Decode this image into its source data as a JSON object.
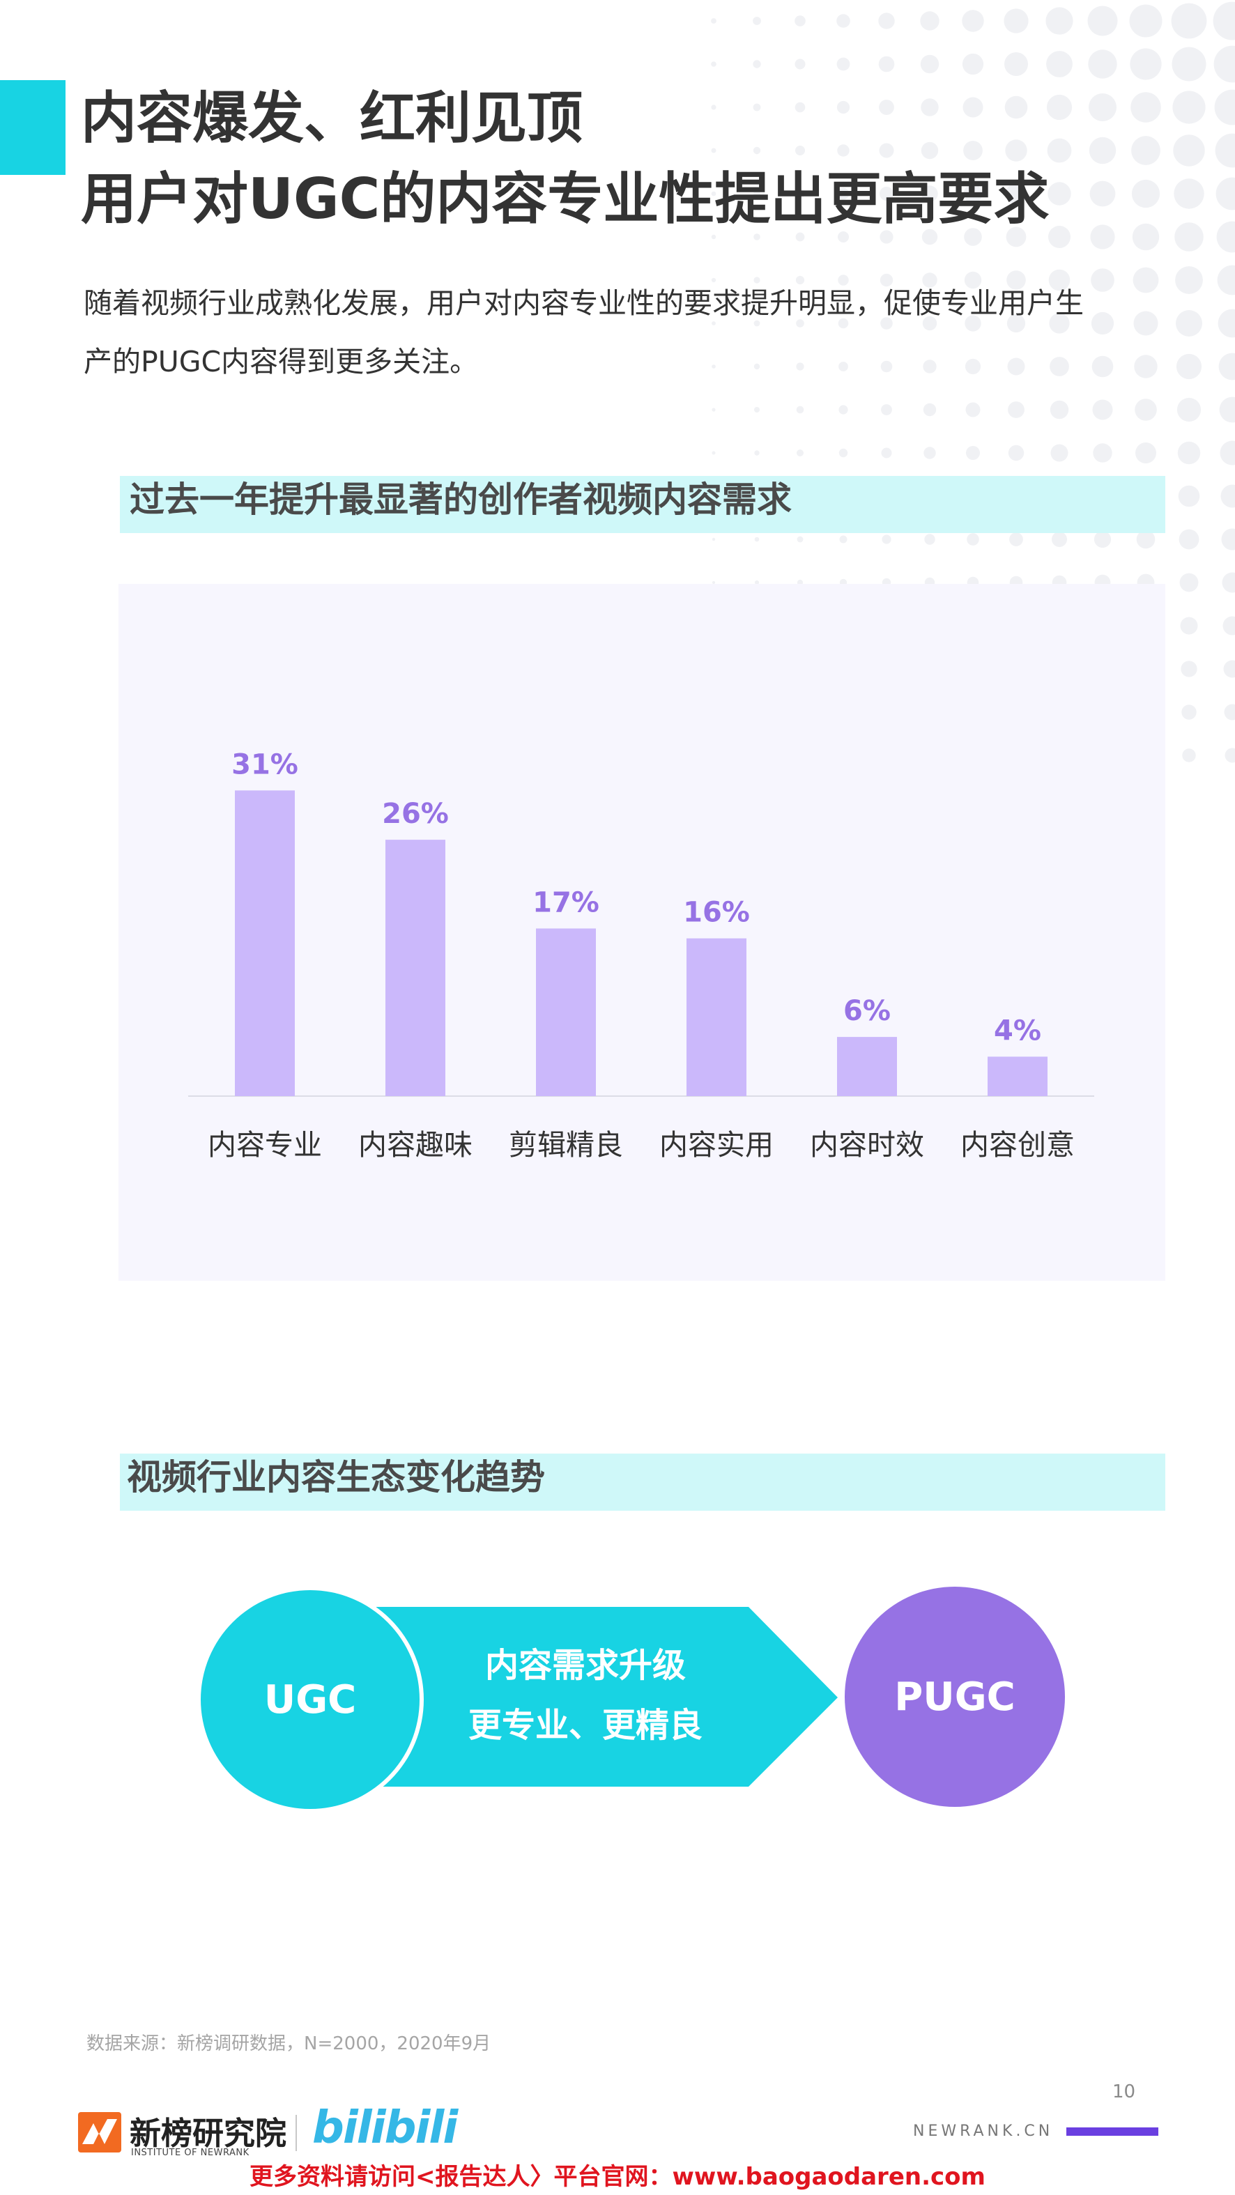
{
  "header": {
    "title_line1": "内容爆发、红利见顶",
    "title_line2": "用户对UGC的内容专业性提出更高要求",
    "intro_line1": "随着视频行业成熟化发展，用户对内容专业性的要求提升明显，促使专业用户生",
    "intro_line2": "产的PUGC内容得到更多关注。"
  },
  "chart_section": {
    "title": "过去一年提升最显著的创作者视频内容需求"
  },
  "chart_data": {
    "type": "bar",
    "categories": [
      "内容专业",
      "内容趣味",
      "剪辑精良",
      "内容实用",
      "内容时效",
      "内容创意"
    ],
    "values": [
      31,
      26,
      17,
      16,
      6,
      4
    ],
    "value_labels": [
      "31%",
      "26%",
      "17%",
      "16%",
      "6%",
      "4%"
    ],
    "unit": "%",
    "ylim": [
      0,
      35
    ],
    "grid": false,
    "bar_color": "#cbb8fb",
    "label_color": "#9672e4"
  },
  "trend_section": {
    "title": "视频行业内容生态变化趋势",
    "from_label": "UGC",
    "to_label": "PUGC",
    "arrow_line1": "内容需求升级",
    "arrow_line2": "更专业、更精良",
    "from_color": "#18d3e3",
    "to_color": "#9672e4"
  },
  "footer": {
    "source": "数据来源：新榜调研数据，N=2000，2020年9月",
    "page_number": "10",
    "brand_name": "新榜研究院",
    "brand_sub": "INSTITUTE OF NEWRANK",
    "partner_logo_text": "bilibili",
    "site": "NEWRANK.CN",
    "promo": "更多资料请访问<报告达人〉平台官网：www.baogaodaren.com"
  },
  "colors": {
    "accent": "#18d3e3",
    "section_band": "#cff8f9",
    "chart_bg": "#f7f6fe",
    "promo": "#e0151f"
  }
}
